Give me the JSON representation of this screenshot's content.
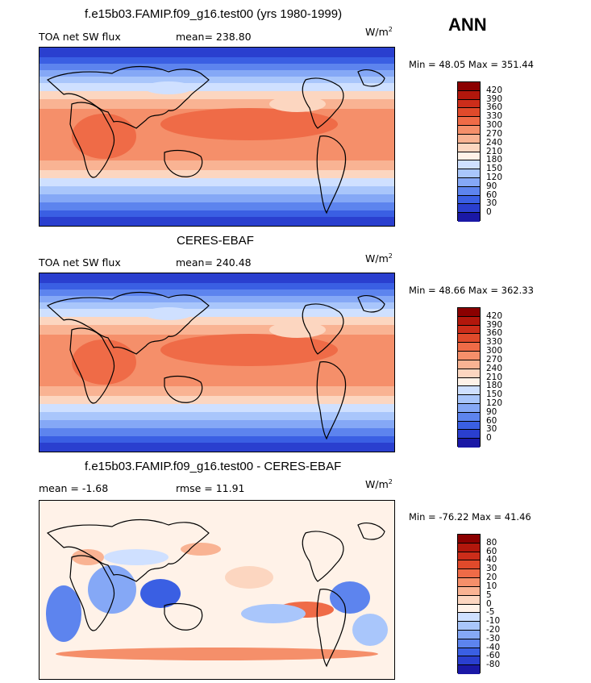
{
  "season": "ANN",
  "panels": [
    {
      "title": "f.e15b03.FAMIP.f09_g16.test00 (yrs 1980-1999)",
      "variable": "TOA net SW flux",
      "stat": "mean=  238.80",
      "units": "W/m",
      "units_sup": "2",
      "minmax": "Min =   48.05  Max =  351.44",
      "levels": [
        "420",
        "390",
        "360",
        "330",
        "300",
        "270",
        "240",
        "210",
        "180",
        "150",
        "120",
        "90",
        "60",
        "30",
        "0"
      ],
      "colors": [
        "#8b0000",
        "#b2170c",
        "#cc2d1a",
        "#e04a2b",
        "#ef6b47",
        "#f58f6a",
        "#f9b393",
        "#fcd6c0",
        "#fff2e8",
        "#cfe0ff",
        "#a9c6fb",
        "#85a8f6",
        "#5d84ee",
        "#3a5fe3",
        "#2a3fcf",
        "#1a18a6"
      ]
    },
    {
      "title": "CERES-EBAF",
      "variable": "TOA net SW flux",
      "stat": "mean=  240.48",
      "units": "W/m",
      "units_sup": "2",
      "minmax": "Min =   48.66  Max =  362.33",
      "levels": [
        "420",
        "390",
        "360",
        "330",
        "300",
        "270",
        "240",
        "210",
        "180",
        "150",
        "120",
        "90",
        "60",
        "30",
        "0"
      ],
      "colors": [
        "#8b0000",
        "#b2170c",
        "#cc2d1a",
        "#e04a2b",
        "#ef6b47",
        "#f58f6a",
        "#f9b393",
        "#fcd6c0",
        "#fff2e8",
        "#cfe0ff",
        "#a9c6fb",
        "#85a8f6",
        "#5d84ee",
        "#3a5fe3",
        "#2a3fcf",
        "#1a18a6"
      ]
    },
    {
      "title": "f.e15b03.FAMIP.f09_g16.test00 - CERES-EBAF",
      "variable": "mean =   -1.68",
      "stat": "rmse =   11.91",
      "units": "W/m",
      "units_sup": "2",
      "minmax": "Min = -76.22  Max =   41.46",
      "levels": [
        "80",
        "60",
        "40",
        "30",
        "20",
        "10",
        "5",
        "0",
        "-5",
        "-10",
        "-20",
        "-30",
        "-40",
        "-60",
        "-80"
      ],
      "colors": [
        "#8b0000",
        "#b2170c",
        "#cc2d1a",
        "#e04a2b",
        "#ef6b47",
        "#f58f6a",
        "#f9b393",
        "#fcd6c0",
        "#fff2e8",
        "#cfe0ff",
        "#a9c6fb",
        "#85a8f6",
        "#5d84ee",
        "#3a5fe3",
        "#2a3fcf",
        "#1a18a6"
      ]
    }
  ]
}
